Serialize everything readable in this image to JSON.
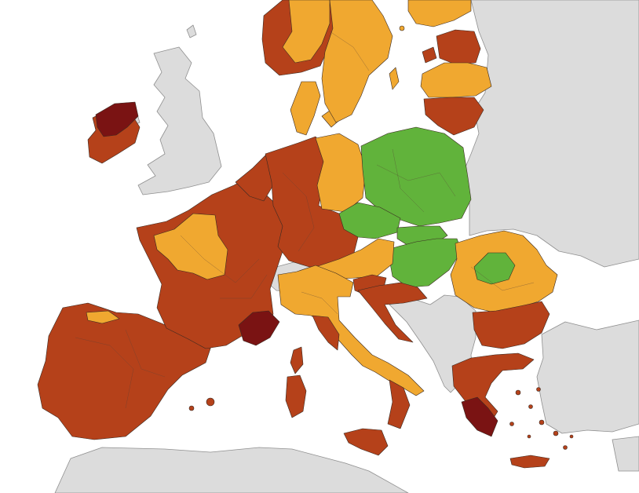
{
  "map": {
    "legend_colors": {
      "green": "#61b33b",
      "orange": "#f0a830",
      "red": "#b5411a",
      "dark_red": "#7a1313",
      "no_data_grey": "#dcdcdc",
      "sea": "#ffffff"
    },
    "region_colors": {
      "ireland": "red",
      "ireland_northwest": "dark_red",
      "iberia": "red",
      "france": "red",
      "france_west": "orange",
      "france_south_coast": "dark_red",
      "benelux": "red",
      "germany_west_south": "red",
      "germany_northeast": "orange",
      "denmark": "orange",
      "norway_south": "red",
      "norway_inland": "orange",
      "sweden": "orange",
      "finland_south": "orange",
      "estonia": "red",
      "latvia": "orange",
      "lithuania": "red",
      "poland": "green",
      "czechia": "green",
      "slovakia": "green",
      "hungary": "green",
      "austria": "orange",
      "slovenia": "red",
      "croatia": "red",
      "italy_north": "orange",
      "italy_south": "red",
      "romania": "orange",
      "romania_centre": "green",
      "bulgaria": "red",
      "greece": "red",
      "greece_south": "dark_red",
      "switzerland": "no_data_grey",
      "uk": "no_data_grey",
      "balkans": "no_data_grey"
    }
  }
}
